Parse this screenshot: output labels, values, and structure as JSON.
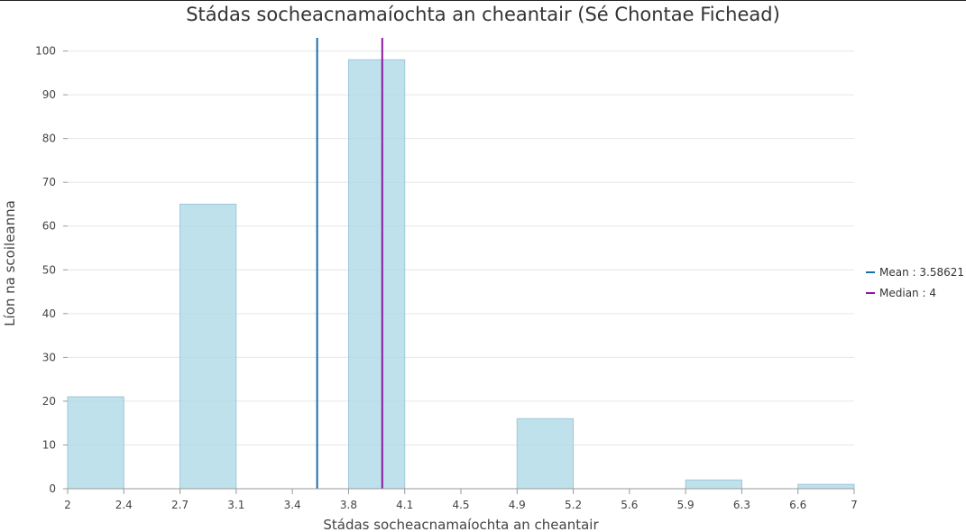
{
  "chart_data": {
    "type": "bar",
    "title": "Stádas socheacnamaíochta an cheantair (Sé Chontae Fichead)",
    "xlabel": "Stádas socheacnamaíochta an cheantair",
    "ylabel": "Líon na scoileanna",
    "xlim": [
      2,
      7
    ],
    "ylim": [
      0,
      103
    ],
    "y_ticks": [
      0,
      10,
      20,
      30,
      40,
      50,
      60,
      70,
      80,
      90,
      100
    ],
    "x_ticks": [
      "2",
      "2.4",
      "2.7",
      "3.1",
      "3.4",
      "3.8",
      "4.1",
      "4.5",
      "4.9",
      "5.2",
      "5.6",
      "5.9",
      "6.3",
      "6.6",
      "7"
    ],
    "bins": [
      {
        "x0": 2.0,
        "x1": 2.357,
        "value": 21
      },
      {
        "x0": 2.714,
        "x1": 3.071,
        "value": 65
      },
      {
        "x0": 3.786,
        "x1": 4.143,
        "value": 98
      },
      {
        "x0": 4.857,
        "x1": 5.214,
        "value": 16
      },
      {
        "x0": 5.929,
        "x1": 6.286,
        "value": 2
      },
      {
        "x0": 6.643,
        "x1": 7.0,
        "value": 1
      }
    ],
    "reference_lines": [
      {
        "name": "Mean",
        "value": 3.58621,
        "label": "Mean : 3.58621",
        "color": "#1a6fa8"
      },
      {
        "name": "Median",
        "value": 4,
        "label": "Median : 4",
        "color": "#8b1a9e"
      }
    ],
    "bar_color": "#add8e6",
    "grid": true,
    "legend_position": "right"
  }
}
